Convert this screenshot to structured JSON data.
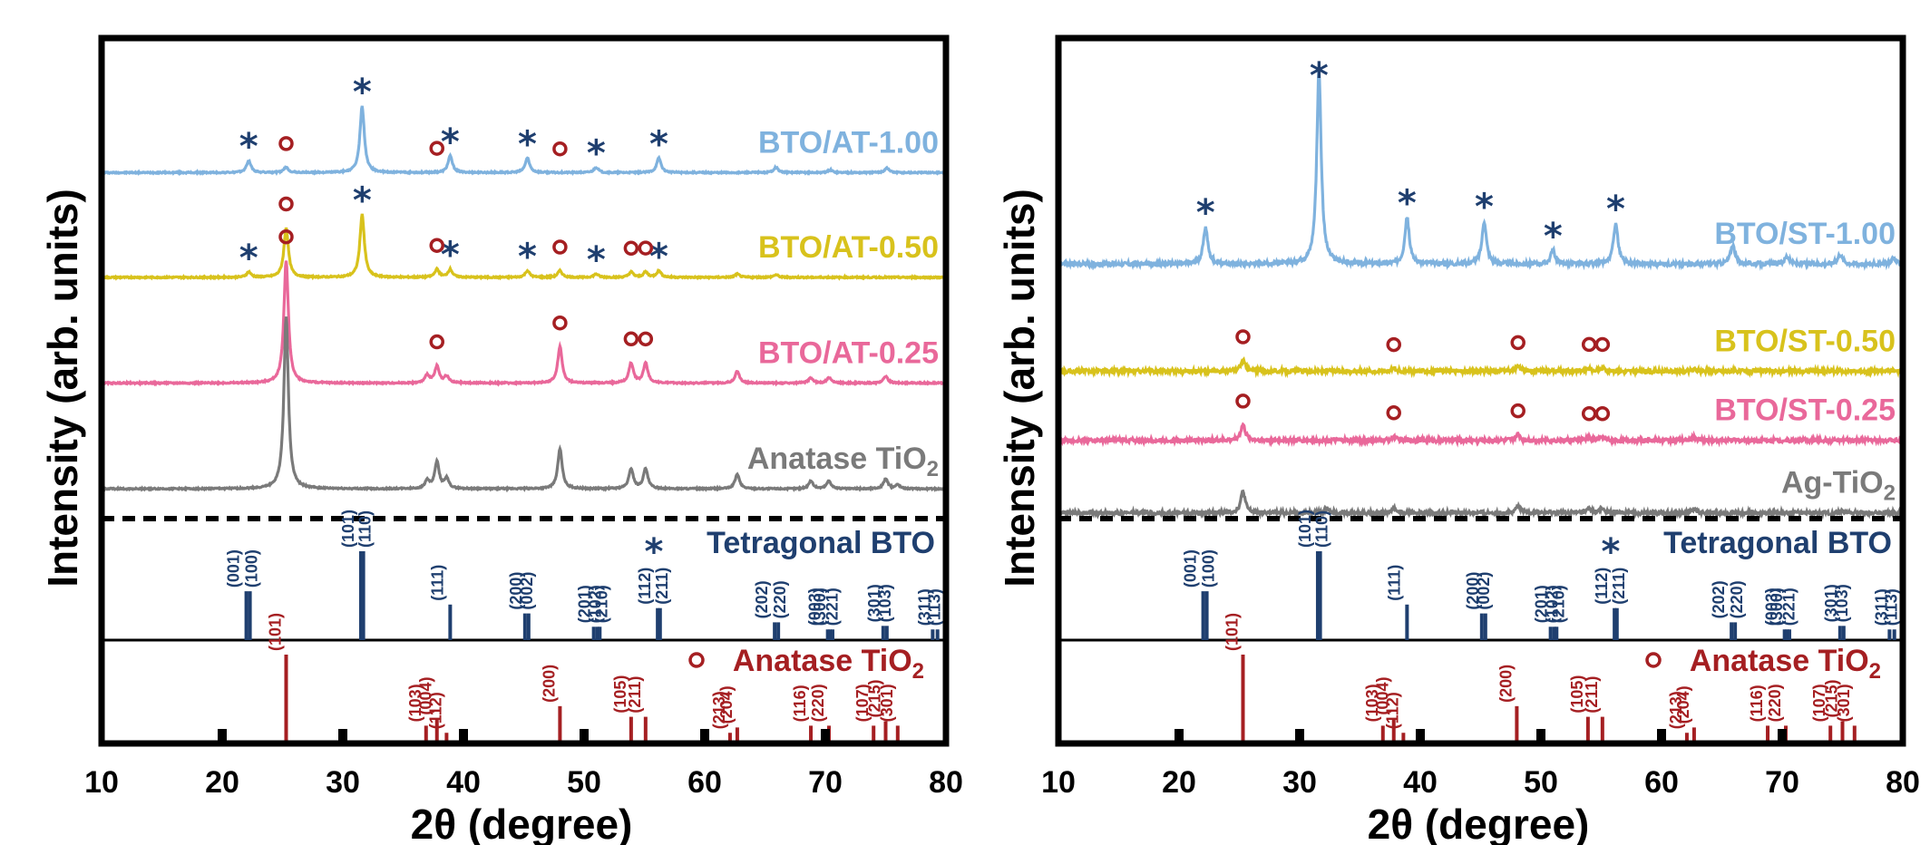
{
  "colors": {
    "frame": "#000000",
    "bto": "#1f3f6f",
    "anatase": "#a51f22",
    "sample_100": "#7fb2de",
    "sample_050": "#d8c21c",
    "sample_025": "#e9689a",
    "reference": "#7a7a7a"
  },
  "ylabel": "Intensity (arb. units)",
  "xlabel": "2θ (degree)",
  "xlim": [
    10,
    80
  ],
  "xticks": [
    "10",
    "20",
    "30",
    "40",
    "50",
    "60",
    "70",
    "80"
  ],
  "legend": {
    "bto_symbol": "*",
    "bto_text": "Tetragonal BTO",
    "anatase_symbol": "o",
    "anatase_text": "Anatase TiO",
    "anatase_sub": "2"
  },
  "chart_data": [
    {
      "type": "line",
      "panel": "left",
      "xlim": [
        10,
        80
      ],
      "series": [
        {
          "name": "BTO/AT-1.00",
          "name_sub": "",
          "color": "#7fb2de",
          "offset": 0.72,
          "amp": 0.138,
          "peaks": [
            [
              22.2,
              0.18
            ],
            [
              25.3,
              0.08
            ],
            [
              31.6,
              1.0
            ],
            [
              38.9,
              0.25
            ],
            [
              45.3,
              0.22
            ],
            [
              51.0,
              0.08
            ],
            [
              56.2,
              0.22
            ],
            [
              65.9,
              0.08
            ],
            [
              70.4,
              0.04
            ],
            [
              75.1,
              0.07
            ]
          ],
          "stars": [
            22.2,
            31.6,
            38.9,
            45.3,
            51.0,
            56.2
          ],
          "circles": [
            25.3,
            37.8,
            48.0
          ]
        },
        {
          "name": "BTO/AT-0.50",
          "name_sub": "",
          "color": "#d8c21c",
          "offset": 0.502,
          "amp": 0.138,
          "peaks": [
            [
              22.2,
              0.08
            ],
            [
              25.3,
              0.75
            ],
            [
              31.6,
              0.95
            ],
            [
              37.8,
              0.12
            ],
            [
              38.9,
              0.12
            ],
            [
              45.3,
              0.1
            ],
            [
              48.0,
              0.1
            ],
            [
              51.0,
              0.05
            ],
            [
              53.9,
              0.08
            ],
            [
              55.1,
              0.08
            ],
            [
              56.2,
              0.1
            ],
            [
              62.7,
              0.05
            ],
            [
              65.9,
              0.04
            ]
          ],
          "stars": [
            22.2,
            31.6,
            38.9,
            45.3,
            51.0,
            56.2
          ],
          "circles": [
            25.3,
            37.8,
            48.0,
            53.9,
            55.1
          ]
        },
        {
          "name": "BTO/AT-0.25",
          "name_sub": "",
          "color": "#e9689a",
          "offset": 0.282,
          "amp": 0.138,
          "peaks": [
            [
              25.3,
              1.85
            ],
            [
              37.0,
              0.12
            ],
            [
              37.8,
              0.25
            ],
            [
              38.6,
              0.1
            ],
            [
              48.0,
              0.55
            ],
            [
              53.9,
              0.3
            ],
            [
              55.1,
              0.3
            ],
            [
              62.7,
              0.18
            ],
            [
              68.8,
              0.08
            ],
            [
              70.3,
              0.08
            ],
            [
              75.0,
              0.1
            ]
          ],
          "stars": [],
          "circles": [
            25.3,
            37.8,
            48.0,
            53.9,
            55.1
          ]
        },
        {
          "name": "Anatase TiO",
          "name_sub": "2",
          "color": "#7a7a7a",
          "offset": 0.062,
          "amp": 0.138,
          "peaks": [
            [
              25.3,
              2.6
            ],
            [
              37.0,
              0.12
            ],
            [
              37.8,
              0.4
            ],
            [
              38.6,
              0.15
            ],
            [
              48.0,
              0.6
            ],
            [
              53.9,
              0.3
            ],
            [
              55.1,
              0.3
            ],
            [
              62.7,
              0.22
            ],
            [
              68.8,
              0.12
            ],
            [
              70.3,
              0.12
            ],
            [
              75.0,
              0.15
            ],
            [
              76.0,
              0.06
            ]
          ],
          "stars": [],
          "circles": []
        }
      ],
      "bto_ref": [
        {
          "x": 22.0,
          "h": 0.55,
          "hkl": "(001)"
        },
        {
          "x": 22.3,
          "h": 0.55,
          "hkl": "(100)"
        },
        {
          "x": 31.5,
          "h": 1.0,
          "hkl": "(101)"
        },
        {
          "x": 31.7,
          "h": 1.0,
          "hkl": "(110)"
        },
        {
          "x": 38.9,
          "h": 0.4,
          "hkl": "(111)"
        },
        {
          "x": 45.1,
          "h": 0.3,
          "hkl": "(002)"
        },
        {
          "x": 45.4,
          "h": 0.3,
          "hkl": "(200)"
        },
        {
          "x": 50.8,
          "h": 0.15,
          "hkl": "(102)"
        },
        {
          "x": 51.1,
          "h": 0.15,
          "hkl": "(201)"
        },
        {
          "x": 51.3,
          "h": 0.15,
          "hkl": "(210)"
        },
        {
          "x": 56.1,
          "h": 0.36,
          "hkl": "(112)"
        },
        {
          "x": 56.3,
          "h": 0.36,
          "hkl": "(211)"
        },
        {
          "x": 65.8,
          "h": 0.2,
          "hkl": "(202)"
        },
        {
          "x": 66.1,
          "h": 0.2,
          "hkl": "(220)"
        },
        {
          "x": 70.2,
          "h": 0.12,
          "hkl": "(003)"
        },
        {
          "x": 70.4,
          "h": 0.12,
          "hkl": "(221)"
        },
        {
          "x": 70.6,
          "h": 0.12,
          "hkl": "(300)"
        },
        {
          "x": 74.8,
          "h": 0.16,
          "hkl": "(103)"
        },
        {
          "x": 75.1,
          "h": 0.16,
          "hkl": "(301)"
        },
        {
          "x": 78.9,
          "h": 0.12,
          "hkl": "(113)"
        },
        {
          "x": 79.3,
          "h": 0.12,
          "hkl": "(311)"
        }
      ],
      "anatase_ref": [
        {
          "x": 25.3,
          "h": 1.0,
          "hkl": "(101)"
        },
        {
          "x": 36.9,
          "h": 0.2,
          "hkl": "(103)"
        },
        {
          "x": 37.8,
          "h": 0.28,
          "hkl": "(004)"
        },
        {
          "x": 38.6,
          "h": 0.12,
          "hkl": "(112)"
        },
        {
          "x": 48.0,
          "h": 0.42,
          "hkl": "(200)"
        },
        {
          "x": 53.9,
          "h": 0.3,
          "hkl": "(105)"
        },
        {
          "x": 55.1,
          "h": 0.3,
          "hkl": "(211)"
        },
        {
          "x": 62.1,
          "h": 0.12,
          "hkl": "(213)"
        },
        {
          "x": 62.7,
          "h": 0.18,
          "hkl": "(204)"
        },
        {
          "x": 68.8,
          "h": 0.2,
          "hkl": "(116)"
        },
        {
          "x": 70.3,
          "h": 0.2,
          "hkl": "(220)"
        },
        {
          "x": 74.0,
          "h": 0.2,
          "hkl": "(107)"
        },
        {
          "x": 75.0,
          "h": 0.25,
          "hkl": "(215)"
        },
        {
          "x": 76.0,
          "h": 0.2,
          "hkl": "(301)"
        }
      ]
    },
    {
      "type": "line",
      "panel": "right",
      "xlim": [
        10,
        80
      ],
      "series": [
        {
          "name": "BTO/ST-1.00",
          "name_sub": "",
          "color": "#7fb2de",
          "offset": 0.53,
          "amp": 0.405,
          "peaks": [
            [
              22.2,
              0.19
            ],
            [
              31.6,
              1.0
            ],
            [
              38.9,
              0.24
            ],
            [
              45.3,
              0.22
            ],
            [
              51.0,
              0.07
            ],
            [
              56.2,
              0.21
            ],
            [
              65.9,
              0.1
            ],
            [
              70.4,
              0.04
            ],
            [
              74.8,
              0.05
            ],
            [
              79.2,
              0.03
            ]
          ],
          "stars": [
            22.2,
            31.6,
            38.9,
            45.3,
            51.0,
            56.2
          ],
          "circles": []
        },
        {
          "name": "BTO/ST-0.50",
          "name_sub": "",
          "color": "#d8c21c",
          "offset": 0.307,
          "amp": 0.405,
          "peaks": [
            [
              25.3,
              0.055
            ],
            [
              37.8,
              0.015
            ],
            [
              48.1,
              0.025
            ],
            [
              54.0,
              0.015
            ],
            [
              55.1,
              0.015
            ],
            [
              62.7,
              0.01
            ]
          ],
          "stars": [],
          "circles": [
            25.3,
            37.8,
            48.1,
            54.0,
            55.1
          ]
        },
        {
          "name": "BTO/ST-0.25",
          "name_sub": "",
          "color": "#e9689a",
          "offset": 0.163,
          "amp": 0.405,
          "peaks": [
            [
              25.3,
              0.08
            ],
            [
              37.8,
              0.02
            ],
            [
              48.1,
              0.03
            ],
            [
              54.0,
              0.015
            ],
            [
              55.1,
              0.015
            ],
            [
              62.7,
              0.015
            ]
          ],
          "stars": [],
          "circles": [
            25.3,
            37.8,
            48.1,
            54.0,
            55.1
          ]
        },
        {
          "name": "Ag-TiO",
          "name_sub": "2",
          "color": "#7a7a7a",
          "offset": 0.012,
          "amp": 0.405,
          "peaks": [
            [
              25.3,
              0.11
            ],
            [
              32.3,
              0.025
            ],
            [
              37.8,
              0.025
            ],
            [
              48.1,
              0.035
            ],
            [
              54.0,
              0.02
            ],
            [
              55.1,
              0.02
            ],
            [
              62.7,
              0.02
            ],
            [
              75.0,
              0.01
            ]
          ],
          "stars": [],
          "circles": []
        }
      ],
      "bto_ref": [
        {
          "x": 22.0,
          "h": 0.55,
          "hkl": "(001)"
        },
        {
          "x": 22.3,
          "h": 0.55,
          "hkl": "(100)"
        },
        {
          "x": 31.5,
          "h": 1.0,
          "hkl": "(101)"
        },
        {
          "x": 31.7,
          "h": 1.0,
          "hkl": "(110)"
        },
        {
          "x": 38.9,
          "h": 0.4,
          "hkl": "(111)"
        },
        {
          "x": 45.1,
          "h": 0.3,
          "hkl": "(002)"
        },
        {
          "x": 45.4,
          "h": 0.3,
          "hkl": "(200)"
        },
        {
          "x": 50.8,
          "h": 0.15,
          "hkl": "(102)"
        },
        {
          "x": 51.1,
          "h": 0.15,
          "hkl": "(201)"
        },
        {
          "x": 51.3,
          "h": 0.15,
          "hkl": "(210)"
        },
        {
          "x": 56.1,
          "h": 0.36,
          "hkl": "(112)"
        },
        {
          "x": 56.3,
          "h": 0.36,
          "hkl": "(211)"
        },
        {
          "x": 65.8,
          "h": 0.2,
          "hkl": "(202)"
        },
        {
          "x": 66.1,
          "h": 0.2,
          "hkl": "(220)"
        },
        {
          "x": 70.2,
          "h": 0.12,
          "hkl": "(003)"
        },
        {
          "x": 70.4,
          "h": 0.12,
          "hkl": "(221)"
        },
        {
          "x": 70.6,
          "h": 0.12,
          "hkl": "(300)"
        },
        {
          "x": 74.8,
          "h": 0.16,
          "hkl": "(103)"
        },
        {
          "x": 75.1,
          "h": 0.16,
          "hkl": "(301)"
        },
        {
          "x": 78.9,
          "h": 0.12,
          "hkl": "(113)"
        },
        {
          "x": 79.3,
          "h": 0.12,
          "hkl": "(311)"
        }
      ],
      "anatase_ref": [
        {
          "x": 25.3,
          "h": 1.0,
          "hkl": "(101)"
        },
        {
          "x": 36.9,
          "h": 0.2,
          "hkl": "(103)"
        },
        {
          "x": 37.8,
          "h": 0.28,
          "hkl": "(004)"
        },
        {
          "x": 38.6,
          "h": 0.12,
          "hkl": "(112)"
        },
        {
          "x": 48.0,
          "h": 0.42,
          "hkl": "(200)"
        },
        {
          "x": 53.9,
          "h": 0.3,
          "hkl": "(105)"
        },
        {
          "x": 55.1,
          "h": 0.3,
          "hkl": "(211)"
        },
        {
          "x": 62.1,
          "h": 0.12,
          "hkl": "(213)"
        },
        {
          "x": 62.7,
          "h": 0.18,
          "hkl": "(204)"
        },
        {
          "x": 68.8,
          "h": 0.2,
          "hkl": "(116)"
        },
        {
          "x": 70.3,
          "h": 0.2,
          "hkl": "(220)"
        },
        {
          "x": 74.0,
          "h": 0.2,
          "hkl": "(107)"
        },
        {
          "x": 75.0,
          "h": 0.25,
          "hkl": "(215)"
        },
        {
          "x": 76.0,
          "h": 0.2,
          "hkl": "(301)"
        }
      ]
    }
  ]
}
